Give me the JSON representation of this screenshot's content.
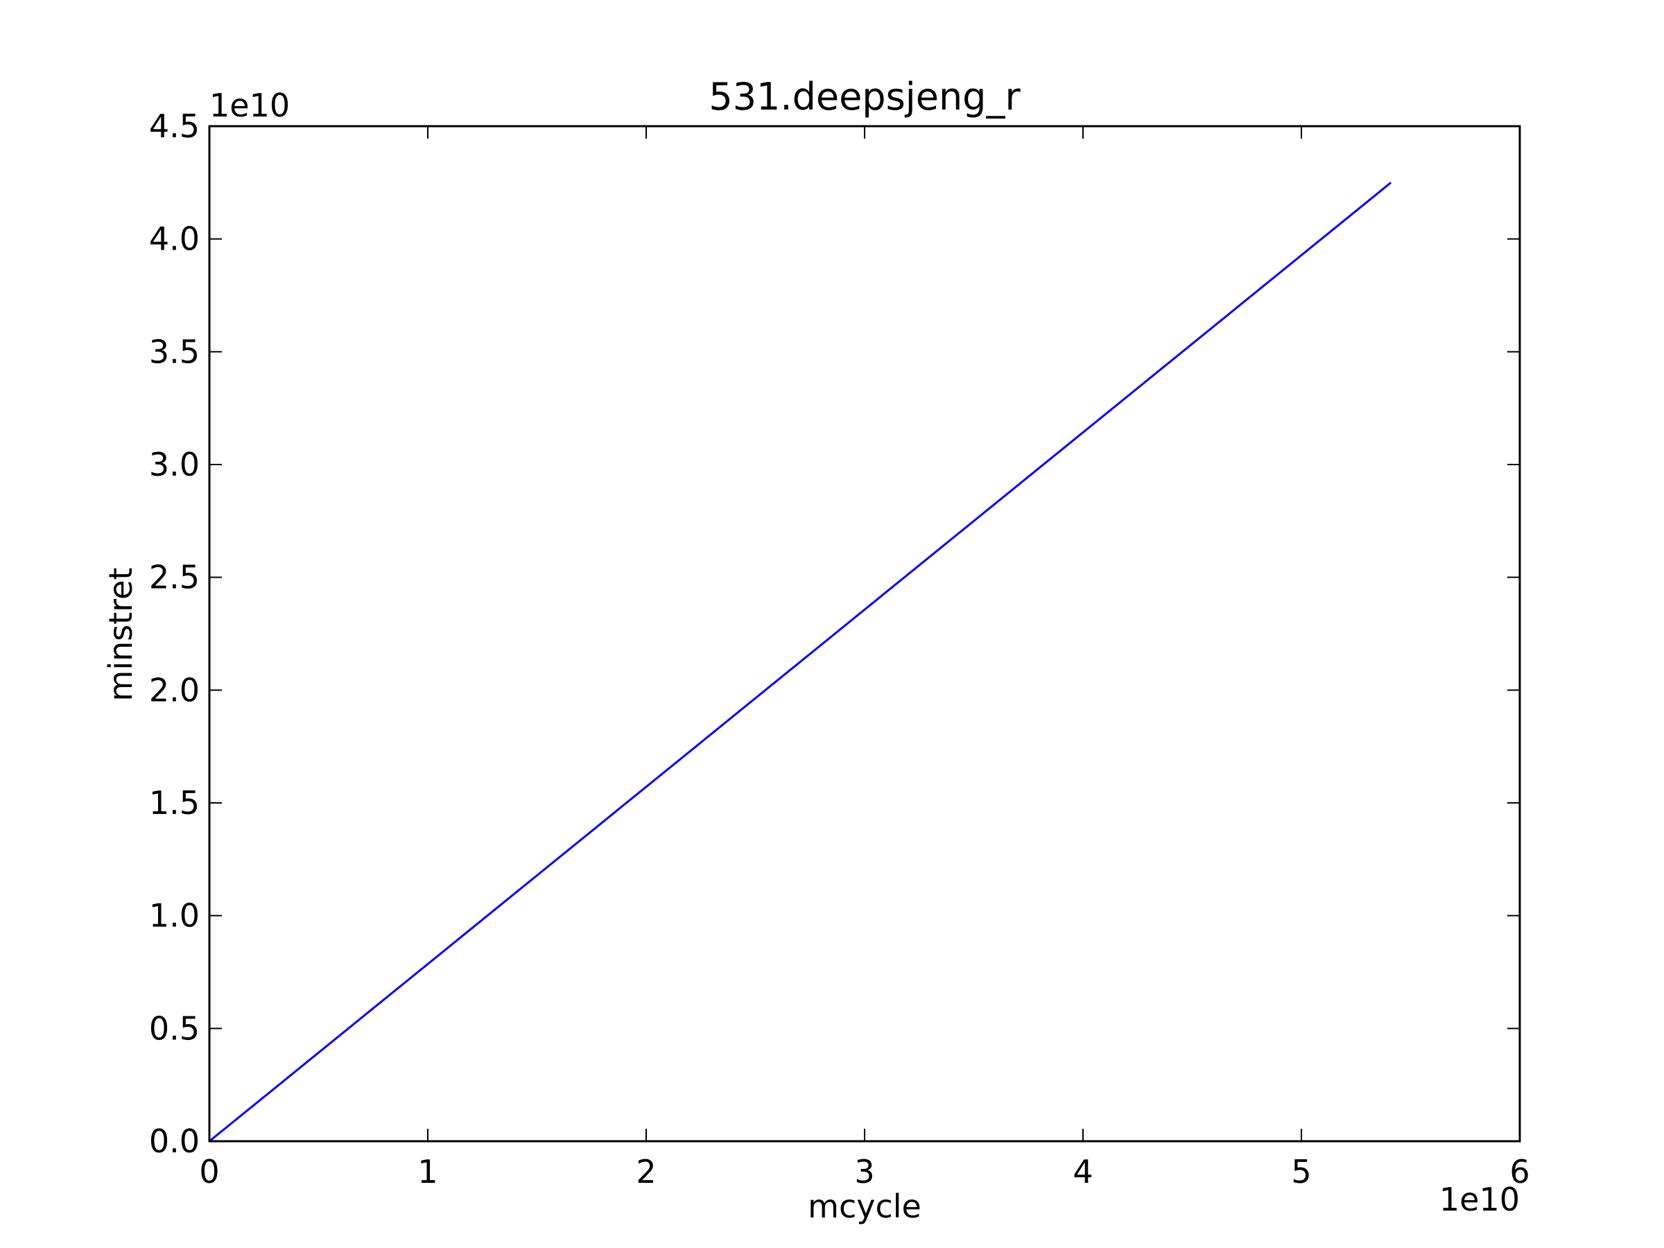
{
  "chart_data": {
    "type": "line",
    "title": "531.deepsjeng_r",
    "xlabel": "mcycle",
    "ylabel": "minstret",
    "x_offset_label": "1e10",
    "y_offset_label": "1e10",
    "xlim": [
      0,
      6
    ],
    "ylim": [
      0,
      4.5
    ],
    "x_ticks": [
      0,
      1,
      2,
      3,
      4,
      5,
      6
    ],
    "y_ticks": [
      0.0,
      0.5,
      1.0,
      1.5,
      2.0,
      2.5,
      3.0,
      3.5,
      4.0,
      4.5
    ],
    "x_tick_labels": [
      "0",
      "1",
      "2",
      "3",
      "4",
      "5",
      "6"
    ],
    "y_tick_labels": [
      "0.0",
      "0.5",
      "1.0",
      "1.5",
      "2.0",
      "2.5",
      "3.0",
      "3.5",
      "4.0",
      "4.5"
    ],
    "grid": false,
    "series": [
      {
        "color": "#0000ff",
        "x": [
          0,
          5.41
        ],
        "y": [
          0,
          4.25
        ]
      }
    ]
  }
}
